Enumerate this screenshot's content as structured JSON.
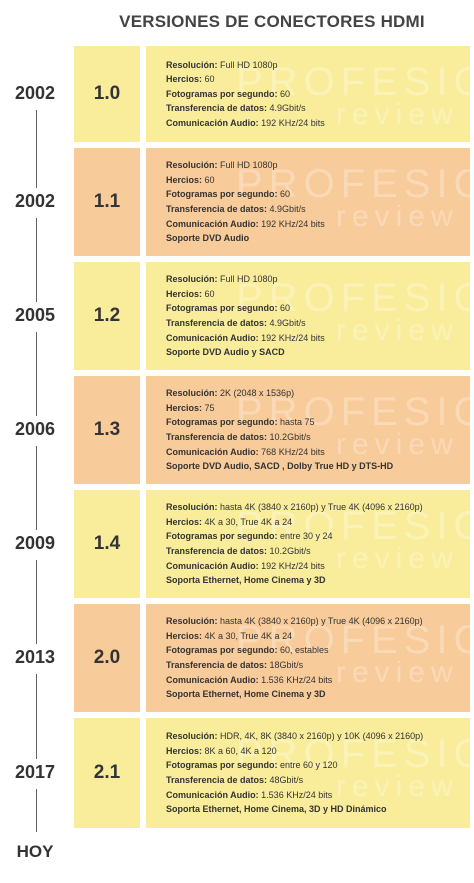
{
  "title": "VERSIONES DE CONECTORES HDMI",
  "end_label": "HOY",
  "watermark": [
    "PROFESIONAL",
    "review"
  ],
  "colors": {
    "yellow": "#f9ed9c",
    "orange": "#f8cb9b"
  },
  "versions": [
    {
      "year": "2002",
      "version": "1.0",
      "color": "yellow",
      "specs": [
        {
          "label": "Resolución:",
          "value": " Full HD 1080p"
        },
        {
          "label": "Hercios:",
          "value": " 60"
        },
        {
          "label": "Fotogramas por segundo:",
          "value": " 60"
        },
        {
          "label": "Transferencia de datos:",
          "value": " 4.9Gbit/s"
        },
        {
          "label": "Comunicación Audio:",
          "value": " 192 KHz/24 bits"
        }
      ]
    },
    {
      "year": "2002",
      "version": "1.1",
      "color": "orange",
      "specs": [
        {
          "label": "Resolución:",
          "value": " Full HD 1080p"
        },
        {
          "label": "Hercios:",
          "value": " 60"
        },
        {
          "label": "Fotogramas por segundo:",
          "value": " 60"
        },
        {
          "label": "Transferencia de datos:",
          "value": " 4.9Gbit/s"
        },
        {
          "label": "Comunicación Audio:",
          "value": " 192 KHz/24 bits"
        },
        {
          "label": "Soporte DVD Audio",
          "value": ""
        }
      ]
    },
    {
      "year": "2005",
      "version": "1.2",
      "color": "yellow",
      "specs": [
        {
          "label": "Resolución:",
          "value": " Full HD 1080p"
        },
        {
          "label": "Hercios:",
          "value": " 60"
        },
        {
          "label": "Fotogramas por segundo:",
          "value": " 60"
        },
        {
          "label": "Transferencia de datos:",
          "value": " 4.9Gbit/s"
        },
        {
          "label": "Comunicación Audio:",
          "value": " 192 KHz/24 bits"
        },
        {
          "label": "Soporte DVD Audio y SACD",
          "value": ""
        }
      ]
    },
    {
      "year": "2006",
      "version": "1.3",
      "color": "orange",
      "specs": [
        {
          "label": "Resolución:",
          "value": " 2K (2048 x 1536p)"
        },
        {
          "label": "Hercios:",
          "value": " 75"
        },
        {
          "label": "Fotogramas por segundo:",
          "value": " hasta 75"
        },
        {
          "label": "Transferencia de datos:",
          "value": " 10.2Gbit/s"
        },
        {
          "label": "Comunicación Audio:",
          "value": " 768 KHz/24 bits"
        },
        {
          "label": "Soporte DVD Audio, SACD , Dolby True HD y DTS-HD",
          "value": ""
        }
      ]
    },
    {
      "year": "2009",
      "version": "1.4",
      "color": "yellow",
      "specs": [
        {
          "label": "Resolución:",
          "value": " hasta 4K (3840 x 2160p) y True 4K (4096 x 2160p)"
        },
        {
          "label": "Hercios:",
          "value": " 4K a 30, True 4K a 24"
        },
        {
          "label": "Fotogramas por segundo:",
          "value": " entre 30 y 24"
        },
        {
          "label": "Transferencia de datos:",
          "value": " 10.2Gbit/s"
        },
        {
          "label": "Comunicación Audio:",
          "value": " 192 KHz/24 bits"
        },
        {
          "label": "Soporta Ethernet, Home Cinema y 3D",
          "value": ""
        }
      ]
    },
    {
      "year": "2013",
      "version": "2.0",
      "color": "orange",
      "specs": [
        {
          "label": "Resolución:",
          "value": " hasta 4K (3840 x 2160p) y True 4K (4096 x 2160p)"
        },
        {
          "label": "Hercios:",
          "value": " 4K a 30, True 4K a 24"
        },
        {
          "label": "Fotogramas por segundo:",
          "value": " 60, estables"
        },
        {
          "label": "Transferencia de datos:",
          "value": " 18Gbit/s"
        },
        {
          "label": "Comunicación Audio:",
          "value": " 1.536 KHz/24 bits"
        },
        {
          "label": "Soporta Ethernet, Home Cinema y 3D",
          "value": ""
        }
      ]
    },
    {
      "year": "2017",
      "version": "2.1",
      "color": "yellow",
      "specs": [
        {
          "label": "Resolución:",
          "value": " HDR, 4K, 8K (3840 x 2160p) y 10K (4096 x 2160p)"
        },
        {
          "label": "Hercios:",
          "value": " 8K a 60, 4K a 120"
        },
        {
          "label": "Fotogramas por segundo:",
          "value": " entre 60 y 120"
        },
        {
          "label": "Transferencia de datos:",
          "value": " 48Gbit/s"
        },
        {
          "label": "Comunicación Audio:",
          "value": " 1.536 KHz/24 bits"
        },
        {
          "label": "Soporta Ethernet, Home Cinema, 3D y HD Dinámico",
          "value": ""
        }
      ]
    }
  ]
}
